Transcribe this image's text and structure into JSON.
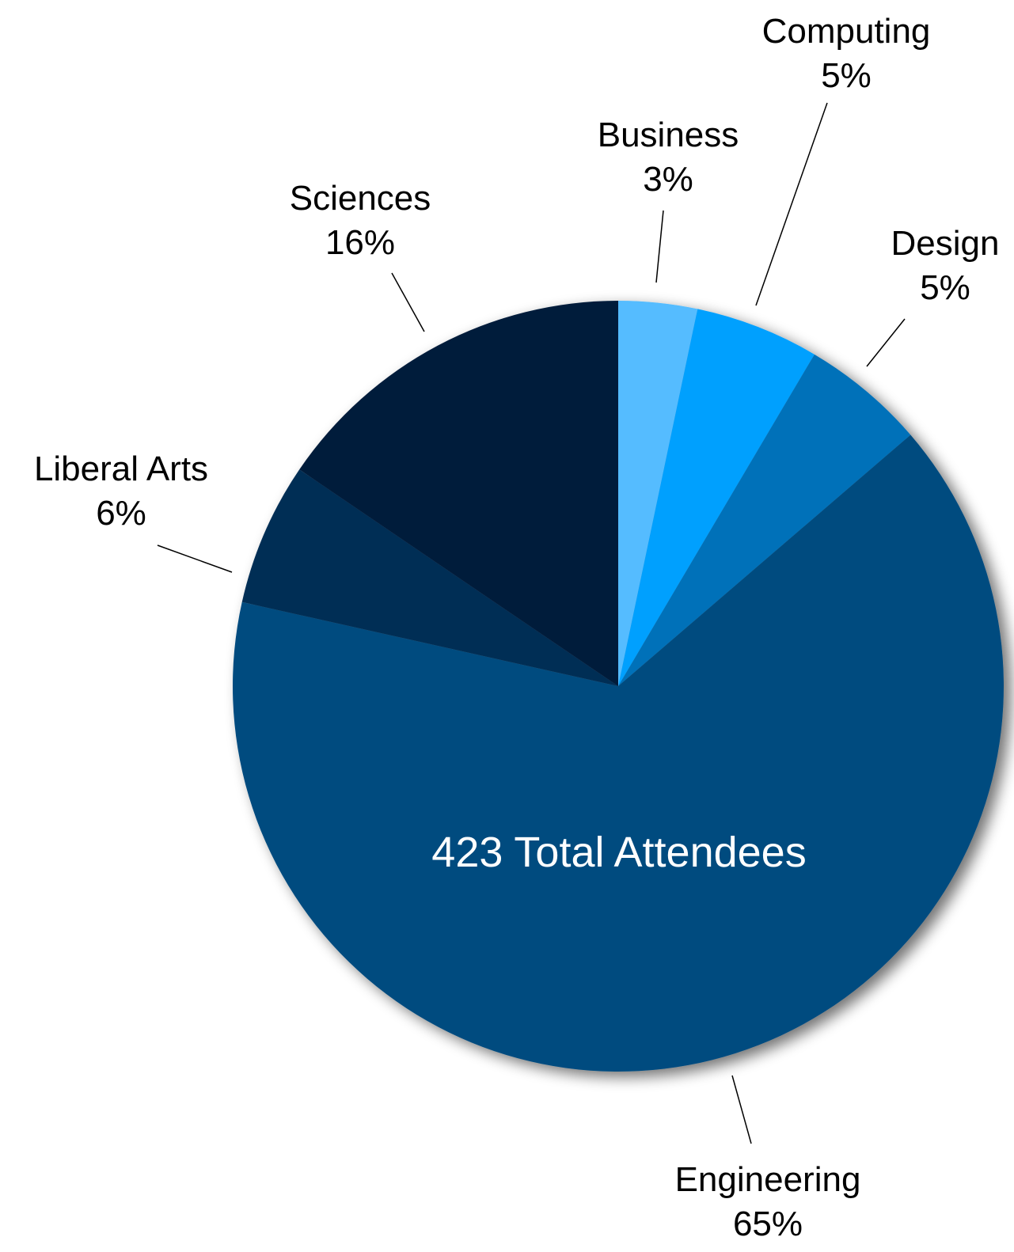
{
  "chart_data": {
    "type": "pie",
    "center_text": "423 Total Attendees",
    "slices": [
      {
        "name": "Business",
        "label": "3%",
        "value": 3.3,
        "color": "#54bcff"
      },
      {
        "name": "Computing",
        "label": "5%",
        "value": 5.2,
        "color": "#00a0fe"
      },
      {
        "name": "Design",
        "label": "5%",
        "value": 5.2,
        "color": "#0071b9"
      },
      {
        "name": "Engineering",
        "label": "65%",
        "value": 64.8,
        "color": "#004c7f"
      },
      {
        "name": "Liberal Arts",
        "label": "6%",
        "value": 6.0,
        "color": "#002e55"
      },
      {
        "name": "Sciences",
        "label": "16%",
        "value": 15.5,
        "color": "#001b3a"
      }
    ]
  }
}
